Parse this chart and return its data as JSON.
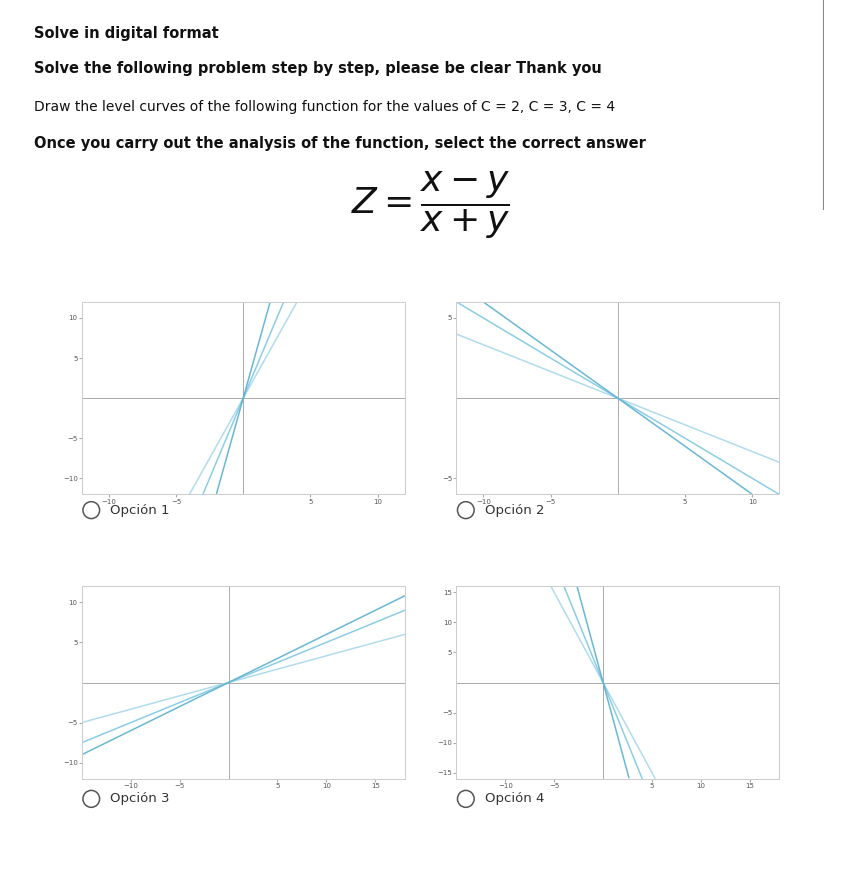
{
  "title1": "Solve in digital format",
  "title2": "Solve the following problem step by step, please be clear Thank you",
  "title3": "Draw the level curves of the following function for the values of C = 2, C = 3, C = 4",
  "title4": "Once you carry out the analysis of the function, select the correct answer",
  "line_colors": [
    "#a8d8ea",
    "#7ec8e3",
    "#5ab0d0"
  ],
  "bg_color": "#ffffff",
  "option_labels": [
    "Opción 1",
    "Opción 2",
    "Opción 3",
    "Opción 4"
  ],
  "configs": [
    {
      "xlim": [
        -12,
        12
      ],
      "ylim": [
        -12,
        12
      ],
      "xticks": [
        -10,
        -5,
        5,
        10
      ],
      "yticks": [
        -10,
        -5,
        5,
        10
      ],
      "slopes": [
        3.0,
        4.0,
        6.0
      ]
    },
    {
      "xlim": [
        -12,
        12
      ],
      "ylim": [
        -6,
        6
      ],
      "xticks": [
        -10,
        -5,
        5,
        10
      ],
      "yticks": [
        -5,
        5
      ],
      "slopes": [
        -0.333,
        -0.5,
        -0.6
      ]
    },
    {
      "xlim": [
        -15,
        18
      ],
      "ylim": [
        -12,
        12
      ],
      "xticks": [
        -10,
        -5,
        5,
        10,
        15
      ],
      "yticks": [
        -10,
        -5,
        5,
        10
      ],
      "slopes": [
        0.333,
        0.5,
        0.6
      ]
    },
    {
      "xlim": [
        -15,
        18
      ],
      "ylim": [
        -16,
        16
      ],
      "xticks": [
        -10,
        -5,
        5,
        10,
        15
      ],
      "yticks": [
        -15,
        -10,
        -5,
        5,
        10,
        15
      ],
      "slopes": [
        -3.0,
        -4.0,
        -6.0
      ]
    }
  ]
}
